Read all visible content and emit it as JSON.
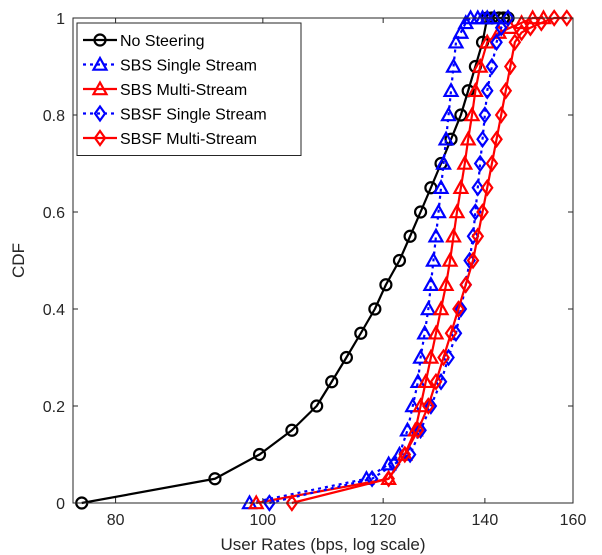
{
  "chart_data": {
    "type": "line",
    "title": "",
    "xlabel": "User Rates (bps, log scale)",
    "ylabel": "CDF",
    "xlim": [
      75,
      160
    ],
    "ylim": [
      0,
      1
    ],
    "x_scale": "log",
    "xticks": [
      80,
      100,
      120,
      140,
      160
    ],
    "yticks": [
      0,
      0.2,
      0.4,
      0.6,
      0.8,
      1
    ],
    "xtick_labels": [
      "80",
      "100",
      "120",
      "140",
      "160"
    ],
    "ytick_labels": [
      "0",
      "0.2",
      "0.4",
      "0.6",
      "0.8",
      "1"
    ],
    "grid": false,
    "legend_position": "top-left",
    "series": [
      {
        "name": "No Steering",
        "color": "#000000",
        "line_style": "solid",
        "marker": "circle",
        "x": [
          76,
          93,
          99.5,
          104.5,
          108.5,
          111,
          113.5,
          116,
          118.5,
          120.5,
          123,
          125,
          127,
          129,
          131,
          133,
          135,
          136.5,
          138,
          139.5,
          140.5,
          141.5,
          143,
          144,
          145
        ],
        "y": [
          0,
          0.05,
          0.1,
          0.15,
          0.2,
          0.25,
          0.3,
          0.35,
          0.4,
          0.45,
          0.5,
          0.55,
          0.6,
          0.65,
          0.7,
          0.75,
          0.8,
          0.85,
          0.9,
          0.95,
          1,
          1,
          1,
          1,
          1
        ]
      },
      {
        "name": "SBS Single Stream",
        "color": "#0000ff",
        "line_style": "dotted",
        "marker": "triangle",
        "x": [
          98,
          117,
          121,
          123,
          124.5,
          125.5,
          126.5,
          127,
          127.8,
          128.5,
          129,
          129.5,
          130,
          130.5,
          131,
          131.5,
          132,
          132.5,
          133,
          133.5,
          134,
          135,
          136,
          137,
          138.5,
          139.5,
          140.5,
          142
        ],
        "y": [
          0,
          0.05,
          0.08,
          0.1,
          0.15,
          0.2,
          0.25,
          0.3,
          0.35,
          0.4,
          0.45,
          0.5,
          0.55,
          0.6,
          0.65,
          0.7,
          0.75,
          0.8,
          0.85,
          0.9,
          0.95,
          0.97,
          0.99,
          1,
          1,
          1,
          1,
          1
        ]
      },
      {
        "name": "SBS Multi-Stream",
        "color": "#ff0000",
        "line_style": "solid",
        "marker": "triangle",
        "x": [
          99,
          121,
          124,
          126,
          127,
          128,
          129,
          130,
          131,
          132,
          132.8,
          133.5,
          134.2,
          135,
          135.8,
          136.5,
          137.3,
          138,
          139,
          140.5,
          143,
          145.5,
          148,
          150.5,
          153
        ],
        "y": [
          0,
          0.05,
          0.1,
          0.15,
          0.2,
          0.25,
          0.3,
          0.35,
          0.4,
          0.45,
          0.5,
          0.55,
          0.6,
          0.65,
          0.7,
          0.75,
          0.8,
          0.85,
          0.9,
          0.95,
          0.97,
          0.98,
          0.99,
          1,
          1
        ]
      },
      {
        "name": "SBSF Single Stream",
        "color": "#0000ff",
        "line_style": "dotted",
        "marker": "diamond",
        "x": [
          101,
          118,
          122,
          125,
          127,
          129,
          131,
          132.5,
          134,
          135,
          136,
          136.8,
          137.5,
          138,
          138.5,
          139,
          139.5,
          140,
          140.5,
          141.5,
          142.5,
          143.5,
          145
        ],
        "y": [
          0,
          0.05,
          0.08,
          0.1,
          0.15,
          0.2,
          0.25,
          0.3,
          0.35,
          0.4,
          0.45,
          0.5,
          0.55,
          0.6,
          0.65,
          0.7,
          0.75,
          0.8,
          0.85,
          0.9,
          0.95,
          0.98,
          1
        ]
      },
      {
        "name": "SBSF Multi-Stream",
        "color": "#ff0000",
        "line_style": "solid",
        "marker": "diamond",
        "x": [
          104.5,
          121,
          124,
          126.5,
          128.5,
          130,
          131.5,
          133,
          134.5,
          136,
          137.5,
          138.5,
          139.5,
          140.5,
          141.5,
          142.5,
          143.5,
          144.5,
          145.5,
          146.5,
          148,
          150,
          152.5,
          155.5,
          158.5
        ],
        "y": [
          0,
          0.05,
          0.1,
          0.15,
          0.2,
          0.25,
          0.3,
          0.35,
          0.4,
          0.45,
          0.5,
          0.55,
          0.6,
          0.65,
          0.7,
          0.75,
          0.8,
          0.85,
          0.9,
          0.95,
          0.97,
          0.98,
          0.99,
          1,
          1
        ]
      }
    ]
  }
}
